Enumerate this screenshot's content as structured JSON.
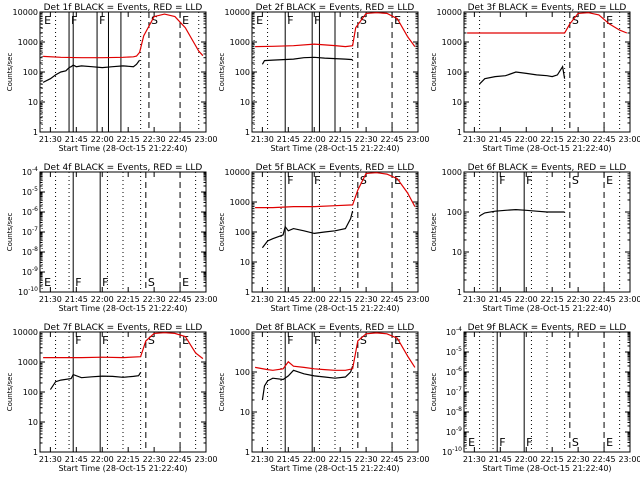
{
  "figure": {
    "bg_color": "#ffffff",
    "black_color": "#000000",
    "red_color": "#e00000"
  },
  "common": {
    "xlabel": "Start Time (28-Oct-15 21:22:40)",
    "ylabel": "Counts/sec",
    "xticks": [
      "21:30",
      "21:45",
      "22:00",
      "22:15",
      "22:30",
      "22:45",
      "23:00"
    ]
  },
  "chart_data": [
    {
      "type": "line",
      "title": "Det 1f BLACK = Events, RED = LLD",
      "ylim": [
        1,
        10000
      ],
      "yticks": [
        "10000",
        "1000",
        "100",
        "10",
        "1"
      ],
      "xlim": [
        21.4,
        23.0
      ],
      "markers": [
        {
          "label": "E",
          "x": 21.42,
          "style": "dotted"
        },
        {
          "label": "F",
          "x": 21.68,
          "style": "solid"
        },
        {
          "label": "",
          "x": 21.72,
          "style": "solid"
        },
        {
          "label": "F",
          "x": 21.95,
          "style": "solid"
        },
        {
          "label": "",
          "x": 22.06,
          "style": "solid"
        },
        {
          "label": "",
          "x": 22.18,
          "style": "solid"
        },
        {
          "label": "S",
          "x": 22.45,
          "style": "dashed"
        },
        {
          "label": "E",
          "x": 22.75,
          "style": "dashed"
        }
      ],
      "vlines": [
        21.55,
        22.37,
        22.93
      ],
      "series": [
        {
          "name": "Events",
          "color": "black",
          "x": [
            21.43,
            21.5,
            21.55,
            21.6,
            21.65,
            21.68,
            21.7,
            21.72,
            21.75,
            21.8,
            21.9,
            22.0,
            22.1,
            22.2,
            22.3,
            22.33,
            22.36
          ],
          "y": [
            45,
            60,
            80,
            100,
            110,
            140,
            150,
            170,
            150,
            160,
            150,
            140,
            150,
            160,
            150,
            180,
            250
          ]
        },
        {
          "name": "LLD",
          "color": "red",
          "x": [
            21.43,
            21.6,
            21.8,
            22.0,
            22.2,
            22.3,
            22.33,
            22.36,
            22.4,
            22.5,
            22.6,
            22.7,
            22.8,
            22.88,
            22.93,
            22.97
          ],
          "y": [
            330,
            310,
            300,
            300,
            310,
            320,
            340,
            450,
            1600,
            7000,
            8500,
            7000,
            3000,
            1000,
            500,
            350
          ]
        }
      ]
    },
    {
      "type": "line",
      "title": "Det 2f BLACK = Events, RED = LLD",
      "ylim": [
        1,
        10000
      ],
      "yticks": [
        "10000",
        "1000",
        "100",
        "10",
        "1"
      ],
      "xlim": [
        21.4,
        23.0
      ],
      "markers": [
        {
          "label": "E",
          "x": 21.42,
          "style": "dotted"
        },
        {
          "label": "F",
          "x": 21.72,
          "style": "solid"
        },
        {
          "label": "F",
          "x": 21.98,
          "style": "solid"
        },
        {
          "label": "",
          "x": 22.05,
          "style": "solid"
        },
        {
          "label": "",
          "x": 22.2,
          "style": "solid"
        },
        {
          "label": "S",
          "x": 22.42,
          "style": "dashed"
        },
        {
          "label": "E",
          "x": 22.75,
          "style": "dashed"
        }
      ],
      "vlines": [
        21.55,
        22.37,
        22.9
      ],
      "series": [
        {
          "name": "Events",
          "color": "black",
          "x": [
            21.5,
            21.52,
            21.6,
            21.7,
            21.8,
            21.9,
            22.0,
            22.1,
            22.2,
            22.3,
            22.37
          ],
          "y": [
            180,
            240,
            250,
            260,
            270,
            300,
            310,
            290,
            280,
            270,
            260
          ]
        },
        {
          "name": "LLD",
          "color": "red",
          "x": [
            21.43,
            21.6,
            21.8,
            22.0,
            22.2,
            22.3,
            22.37,
            22.4,
            22.5,
            22.6,
            22.7,
            22.8,
            22.9,
            22.97
          ],
          "y": [
            700,
            720,
            750,
            850,
            760,
            700,
            750,
            3000,
            9000,
            9500,
            9000,
            6000,
            1500,
            700
          ]
        }
      ]
    },
    {
      "type": "line",
      "title": "Det 3f BLACK = Events, RED = LLD",
      "ylim": [
        1,
        10000
      ],
      "yticks": [
        "10000",
        "1000",
        "100",
        "10",
        "1"
      ],
      "xlim": [
        21.4,
        23.0
      ],
      "markers": [
        {
          "label": "S",
          "x": 22.42,
          "style": "dashed"
        },
        {
          "label": "E",
          "x": 22.75,
          "style": "dashed"
        }
      ],
      "vlines": [
        21.55,
        22.37,
        22.9
      ],
      "series": [
        {
          "name": "Events",
          "color": "black",
          "x": [
            21.55,
            21.6,
            21.7,
            21.8,
            21.9,
            22.0,
            22.1,
            22.2,
            22.25,
            22.3,
            22.35,
            22.37
          ],
          "y": [
            40,
            60,
            70,
            75,
            100,
            90,
            80,
            75,
            70,
            80,
            150,
            60
          ]
        },
        {
          "name": "LLD",
          "color": "red",
          "x": [
            21.43,
            21.6,
            21.8,
            22.0,
            22.2,
            22.37,
            22.42,
            22.5,
            22.6,
            22.7,
            22.8,
            22.9,
            22.97
          ],
          "y": [
            2000,
            2000,
            2000,
            2000,
            2000,
            2000,
            4000,
            9000,
            9500,
            8000,
            4000,
            2500,
            2000
          ]
        }
      ]
    },
    {
      "type": "line",
      "title": "Det 4f BLACK = Events, RED = LLD",
      "ylim": [
        1e-10,
        0.0001
      ],
      "yticks": [
        "10^-4",
        "10^-5",
        "10^-6",
        "10^-7",
        "10^-8",
        "10^-9",
        "10^-10"
      ],
      "xlim": [
        21.4,
        23.0
      ],
      "markers": [
        {
          "label": "E",
          "x": 21.42,
          "style": "dotted"
        },
        {
          "label": "F",
          "x": 21.72,
          "style": "solid"
        },
        {
          "label": "F",
          "x": 21.98,
          "style": "solid"
        },
        {
          "label": "S",
          "x": 22.42,
          "style": "dashed"
        },
        {
          "label": "E",
          "x": 22.75,
          "style": "dashed"
        }
      ],
      "vlines": [
        21.55,
        21.68,
        22.05,
        22.2,
        22.37,
        22.9
      ],
      "series": []
    },
    {
      "type": "line",
      "title": "Det 5f BLACK = Events, RED = LLD",
      "ylim": [
        1,
        10000
      ],
      "yticks": [
        "10000",
        "1000",
        "100",
        "10",
        "1"
      ],
      "xlim": [
        21.4,
        23.0
      ],
      "markers": [
        {
          "label": "F",
          "x": 21.72,
          "style": "solid"
        },
        {
          "label": "F",
          "x": 21.98,
          "style": "solid"
        },
        {
          "label": "S",
          "x": 22.42,
          "style": "dashed"
        },
        {
          "label": "E",
          "x": 22.75,
          "style": "dashed"
        }
      ],
      "vlines": [
        21.55,
        21.68,
        22.05,
        22.2,
        22.37,
        22.9
      ],
      "series": [
        {
          "name": "Events",
          "color": "black",
          "x": [
            21.5,
            21.55,
            21.6,
            21.7,
            21.72,
            21.75,
            21.8,
            21.9,
            22.0,
            22.1,
            22.2,
            22.3,
            22.35,
            22.37
          ],
          "y": [
            30,
            50,
            60,
            80,
            150,
            110,
            130,
            110,
            90,
            100,
            110,
            130,
            280,
            500
          ]
        },
        {
          "name": "LLD",
          "color": "red",
          "x": [
            21.43,
            21.6,
            21.8,
            22.0,
            22.2,
            22.37,
            22.42,
            22.5,
            22.6,
            22.7,
            22.8,
            22.9,
            22.97
          ],
          "y": [
            650,
            650,
            700,
            700,
            750,
            800,
            2500,
            9000,
            9500,
            8500,
            6000,
            2000,
            700
          ]
        }
      ]
    },
    {
      "type": "line",
      "title": "Det 6f BLACK = Events, RED = LLD",
      "ylim": [
        1,
        1000
      ],
      "yticks": [
        "1000",
        "100",
        "10",
        "1"
      ],
      "xlim": [
        21.4,
        23.0
      ],
      "markers": [
        {
          "label": "F",
          "x": 21.72,
          "style": "solid"
        },
        {
          "label": "F",
          "x": 21.98,
          "style": "solid"
        },
        {
          "label": "S",
          "x": 22.42,
          "style": "dashed"
        },
        {
          "label": "E",
          "x": 22.75,
          "style": "dashed"
        }
      ],
      "vlines": [
        21.55,
        21.68,
        22.05,
        22.2,
        22.37,
        22.9
      ],
      "series": [
        {
          "name": "Events",
          "color": "black",
          "x": [
            21.55,
            21.6,
            21.7,
            21.8,
            21.9,
            22.0,
            22.1,
            22.2,
            22.3,
            22.37
          ],
          "y": [
            80,
            95,
            105,
            110,
            115,
            110,
            105,
            100,
            100,
            100
          ]
        }
      ]
    },
    {
      "type": "line",
      "title": "Det 7f BLACK = Events, RED = LLD",
      "ylim": [
        1,
        10000
      ],
      "yticks": [
        "10000",
        "1000",
        "100",
        "10",
        "1"
      ],
      "xlim": [
        21.4,
        23.0
      ],
      "markers": [
        {
          "label": "F",
          "x": 21.72,
          "style": "solid"
        },
        {
          "label": "F",
          "x": 21.98,
          "style": "solid"
        },
        {
          "label": "S",
          "x": 22.42,
          "style": "dashed"
        },
        {
          "label": "E",
          "x": 22.75,
          "style": "dashed"
        }
      ],
      "vlines": [
        21.55,
        21.68,
        22.05,
        22.2,
        22.37,
        22.9
      ],
      "series": [
        {
          "name": "Events",
          "color": "black",
          "x": [
            21.5,
            21.55,
            21.6,
            21.7,
            21.72,
            21.8,
            21.9,
            22.0,
            22.1,
            22.2,
            22.3,
            22.35,
            22.37
          ],
          "y": [
            120,
            220,
            250,
            280,
            380,
            300,
            320,
            340,
            330,
            310,
            330,
            350,
            450
          ]
        },
        {
          "name": "LLD",
          "color": "red",
          "x": [
            21.43,
            21.6,
            21.8,
            22.0,
            22.2,
            22.37,
            22.42,
            22.5,
            22.6,
            22.7,
            22.8,
            22.9,
            22.97
          ],
          "y": [
            1400,
            1400,
            1400,
            1450,
            1400,
            1500,
            5000,
            9000,
            9500,
            9000,
            7000,
            2000,
            1300
          ]
        }
      ]
    },
    {
      "type": "line",
      "title": "Det 8f BLACK = Events, RED = LLD",
      "ylim": [
        1,
        1000
      ],
      "yticks": [
        "1000",
        "100",
        "10",
        "1"
      ],
      "xlim": [
        21.4,
        23.0
      ],
      "markers": [
        {
          "label": "F",
          "x": 21.72,
          "style": "solid"
        },
        {
          "label": "F",
          "x": 21.98,
          "style": "solid"
        },
        {
          "label": "S",
          "x": 22.42,
          "style": "dashed"
        },
        {
          "label": "E",
          "x": 22.75,
          "style": "dashed"
        }
      ],
      "vlines": [
        21.55,
        21.68,
        22.05,
        22.2,
        22.37,
        22.9
      ],
      "series": [
        {
          "name": "Events",
          "color": "black",
          "x": [
            21.5,
            21.52,
            21.55,
            21.6,
            21.7,
            21.75,
            21.8,
            21.9,
            22.0,
            22.1,
            22.2,
            22.3,
            22.35,
            22.37
          ],
          "y": [
            20,
            45,
            60,
            70,
            65,
            80,
            110,
            90,
            80,
            75,
            70,
            75,
            100,
            140
          ]
        },
        {
          "name": "LLD",
          "color": "red",
          "x": [
            21.43,
            21.55,
            21.6,
            21.7,
            21.75,
            21.8,
            21.9,
            22.0,
            22.1,
            22.2,
            22.3,
            22.37,
            22.42,
            22.5,
            22.6,
            22.7,
            22.8,
            22.9,
            22.97
          ],
          "y": [
            130,
            115,
            110,
            120,
            180,
            140,
            130,
            120,
            115,
            110,
            110,
            120,
            600,
            900,
            950,
            900,
            700,
            250,
            130
          ]
        }
      ]
    },
    {
      "type": "line",
      "title": "Det 9f BLACK = Events, RED = LLD",
      "ylim": [
        1e-10,
        0.0001
      ],
      "yticks": [
        "10^-4",
        "10^-5",
        "10^-6",
        "10^-7",
        "10^-8",
        "10^-9",
        "10^-10"
      ],
      "xlim": [
        21.4,
        23.0
      ],
      "markers": [
        {
          "label": "E",
          "x": 21.42,
          "style": "dotted"
        },
        {
          "label": "F",
          "x": 21.72,
          "style": "solid"
        },
        {
          "label": "F",
          "x": 21.98,
          "style": "solid"
        },
        {
          "label": "S",
          "x": 22.42,
          "style": "dashed"
        },
        {
          "label": "E",
          "x": 22.75,
          "style": "dashed"
        }
      ],
      "vlines": [
        21.55,
        21.68,
        22.05,
        22.2,
        22.37,
        22.9
      ],
      "series": []
    }
  ]
}
